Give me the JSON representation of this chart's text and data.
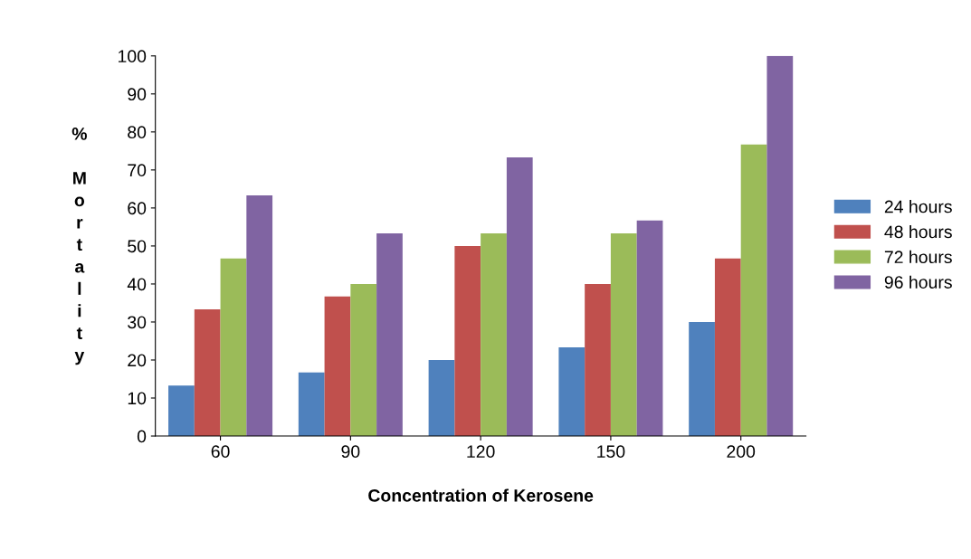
{
  "chart_data": {
    "type": "bar",
    "xlabel": "Concentration of Kerosene",
    "ylabel": "% Mortality",
    "categories": [
      "60",
      "90",
      "120",
      "150",
      "200"
    ],
    "series": [
      {
        "name": "24 hours",
        "color": "#4f81bd",
        "values": [
          13.3,
          16.7,
          20,
          23.3,
          30
        ]
      },
      {
        "name": "48 hours",
        "color": "#c0504d",
        "values": [
          33.3,
          36.7,
          50,
          40,
          46.7
        ]
      },
      {
        "name": "72 hours",
        "color": "#9bbb59",
        "values": [
          46.7,
          40,
          53.3,
          53.3,
          76.7
        ]
      },
      {
        "name": "96 hours",
        "color": "#8064a2",
        "values": [
          63.3,
          53.3,
          73.3,
          56.7,
          100
        ]
      }
    ],
    "ylim": [
      0,
      100
    ],
    "yticks": [
      0,
      10,
      20,
      30,
      40,
      50,
      60,
      70,
      80,
      90,
      100
    ],
    "grid": false,
    "legend": "right"
  }
}
